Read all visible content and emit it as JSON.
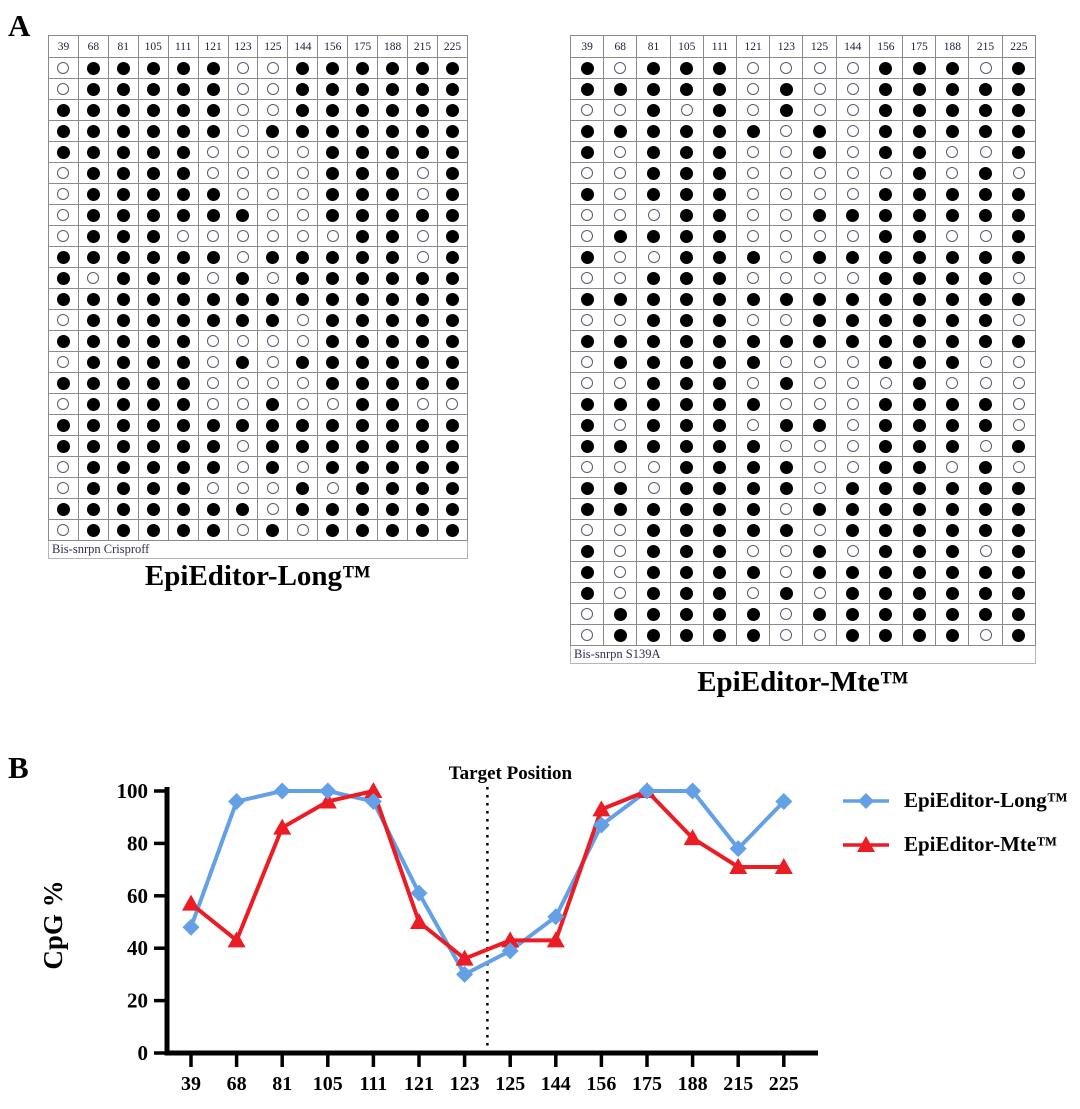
{
  "panel_a": {
    "label": "A",
    "grids": [
      {
        "id": "long",
        "caption": "EpiEditor-Long™",
        "footer": "Bis-snrpn Crisproff",
        "columns": [
          "39",
          "68",
          "81",
          "105",
          "111",
          "121",
          "123",
          "125",
          "144",
          "156",
          "175",
          "188",
          "215",
          "225"
        ],
        "rows": [
          "01111100111111",
          "01111100111111",
          "11111100111111",
          "11111101111111",
          "11111000011111",
          "01111000011101",
          "01111100011101",
          "01111110011111",
          "01110000001101",
          "11111101111101",
          "10111010111111",
          "11111111111111",
          "01111111011111",
          "11111000011111",
          "01111010111111",
          "11111000011111",
          "01111001001100",
          "11111111111111",
          "11111101111111",
          "01111101011111",
          "01111000101111",
          "11111110111111",
          "01111101011111"
        ]
      },
      {
        "id": "mte",
        "caption": "EpiEditor-Mte™",
        "footer": "Bis-snrpn S139A",
        "columns": [
          "39",
          "68",
          "81",
          "105",
          "111",
          "121",
          "123",
          "125",
          "144",
          "156",
          "175",
          "188",
          "215",
          "225"
        ],
        "rows": [
          "10111000011101",
          "11111010011111",
          "00101010011111",
          "11111101011111",
          "10111001011001",
          "00111000001010",
          "10111000011111",
          "00011001111111",
          "01111000011001",
          "10011101111111",
          "00111000011110",
          "11111111111111",
          "00111001111110",
          "11111111111111",
          "01111100011100",
          "00111010001000",
          "11111100011110",
          "10111011011110",
          "11111100011101",
          "00011110011010",
          "11011110111111",
          "11111101111111",
          "00111110111111",
          "10111001011101",
          "10111101111111",
          "10111010111111",
          "01111101111111",
          "01111100111101"
        ]
      }
    ]
  },
  "panel_b": {
    "label": "B"
  },
  "chart_data": {
    "type": "line",
    "categories": [
      39,
      68,
      81,
      105,
      111,
      121,
      123,
      125,
      144,
      156,
      175,
      188,
      215,
      225
    ],
    "series": [
      {
        "name": "EpiEditor-Long™",
        "color": "#64A0E6",
        "marker": "diamond",
        "values": [
          48,
          96,
          100,
          100,
          96,
          61,
          30,
          39,
          52,
          87,
          100,
          100,
          78,
          96
        ]
      },
      {
        "name": "EpiEditor-Mte™",
        "color": "#EC1C24",
        "marker": "triangle",
        "values": [
          57,
          43,
          86,
          96,
          100,
          50,
          36,
          43,
          43,
          93,
          100,
          82,
          71,
          71
        ]
      }
    ],
    "title": "",
    "xlabel": "",
    "ylabel": "CpG %",
    "ylim": [
      0,
      100
    ],
    "yticks": [
      0,
      20,
      40,
      60,
      80,
      100
    ],
    "grid": false,
    "legend_position": "right",
    "annotation": {
      "label": "Target Position",
      "between": [
        "123",
        "125"
      ]
    }
  },
  "colors": {
    "series_long": "#64A0E6",
    "series_mte": "#EC1C24",
    "axis": "#000000",
    "dot_filled": "#000000",
    "dot_open_border": "#5a5a6e",
    "grid_border": "#8a8a8a"
  }
}
